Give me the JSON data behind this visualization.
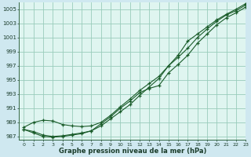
{
  "title": "Graphe pression niveau de la mer (hPa)",
  "background_color": "#cfe8f0",
  "plot_bg_color": "#dff5f0",
  "grid_color": "#99ccbb",
  "line_color": "#1a5c2a",
  "marker_color": "#1a5c2a",
  "xlim": [
    -0.5,
    23
  ],
  "ylim": [
    986.5,
    1006.0
  ],
  "yticks": [
    987,
    989,
    991,
    993,
    995,
    997,
    999,
    1001,
    1003,
    1005
  ],
  "xticks": [
    0,
    1,
    2,
    3,
    4,
    5,
    6,
    7,
    8,
    9,
    10,
    11,
    12,
    13,
    14,
    15,
    16,
    17,
    18,
    19,
    20,
    21,
    22,
    23
  ],
  "series": [
    [
      988.0,
      987.7,
      987.2,
      987.0,
      987.1,
      987.3,
      987.5,
      987.8,
      988.5,
      989.5,
      990.5,
      991.5,
      992.8,
      994.0,
      995.2,
      997.0,
      998.2,
      999.5,
      1001.0,
      1002.2,
      1003.3,
      1004.2,
      1004.8,
      1005.6
    ],
    [
      988.0,
      987.5,
      987.0,
      986.9,
      987.0,
      987.2,
      987.4,
      987.8,
      988.8,
      989.8,
      991.0,
      992.0,
      993.2,
      993.8,
      994.2,
      996.0,
      997.2,
      998.5,
      1000.2,
      1001.5,
      1002.8,
      1003.8,
      1004.5,
      1005.3
    ],
    [
      988.3,
      989.0,
      989.3,
      989.2,
      988.7,
      988.5,
      988.4,
      988.5,
      989.0,
      990.0,
      991.2,
      992.3,
      993.5,
      994.5,
      995.5,
      997.0,
      998.5,
      1000.5,
      1001.5,
      1002.5,
      1003.5,
      1004.3,
      1005.0,
      1005.8
    ]
  ]
}
